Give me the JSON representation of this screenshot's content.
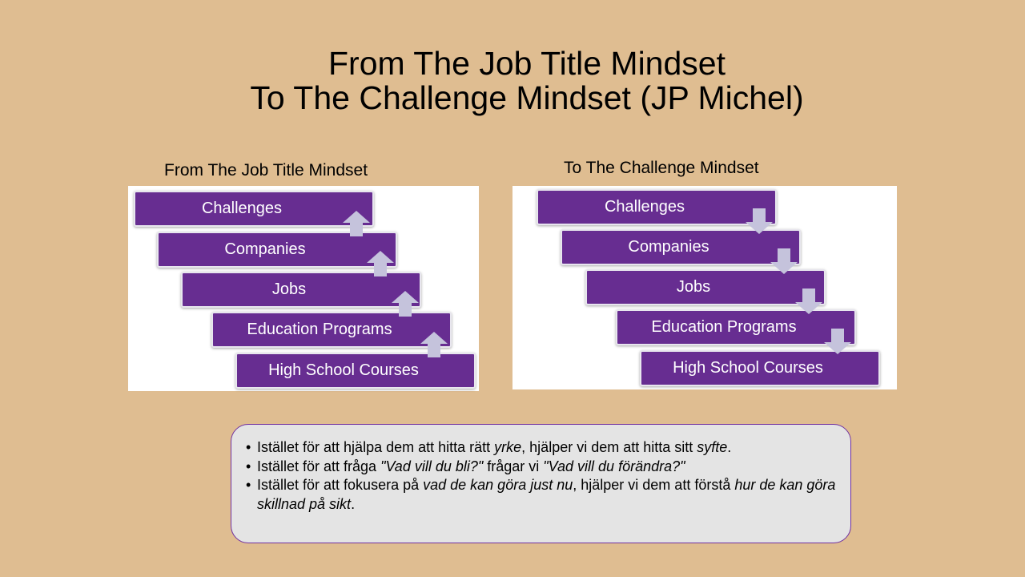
{
  "title": [
    "From The Job Title Mindset",
    "To The Challenge Mindset (JP Michel)"
  ],
  "left": {
    "caption": "From The Job Title Mindset",
    "arrow_direction": "up",
    "items": [
      "Challenges",
      "Companies",
      "Jobs",
      "Education Programs",
      "High School Courses"
    ]
  },
  "right": {
    "caption": "To The Challenge Mindset",
    "arrow_direction": "down",
    "items": [
      "Challenges",
      "Companies",
      "Jobs",
      "Education Programs",
      "High School Courses"
    ]
  },
  "colors": {
    "background": "#dfbd91",
    "bar": "#672d91",
    "arrow": "#c5c3dc",
    "notes_bg": "#e4e4e4",
    "notes_border": "#7030a0"
  },
  "notes": [
    [
      {
        "t": "Istället för att hjälpa dem att hitta rätt ",
        "i": false
      },
      {
        "t": "yrke",
        "i": true
      },
      {
        "t": ", hjälper vi dem att hitta sitt ",
        "i": false
      },
      {
        "t": "syfte",
        "i": true
      },
      {
        "t": ".",
        "i": false
      }
    ],
    [
      {
        "t": "Istället för att fråga ",
        "i": false
      },
      {
        "t": "\"Vad vill du bli?\"",
        "i": true
      },
      {
        "t": " frågar vi ",
        "i": false
      },
      {
        "t": "\"Vad vill du förändra?\"",
        "i": true
      }
    ],
    [
      {
        "t": "Istället för att fokusera på ",
        "i": false
      },
      {
        "t": "vad de kan göra just nu",
        "i": true
      },
      {
        "t": ", hjälper vi dem att förstå ",
        "i": false
      },
      {
        "t": "hur de kan göra skillnad på sikt",
        "i": true
      },
      {
        "t": ".",
        "i": false
      }
    ]
  ]
}
